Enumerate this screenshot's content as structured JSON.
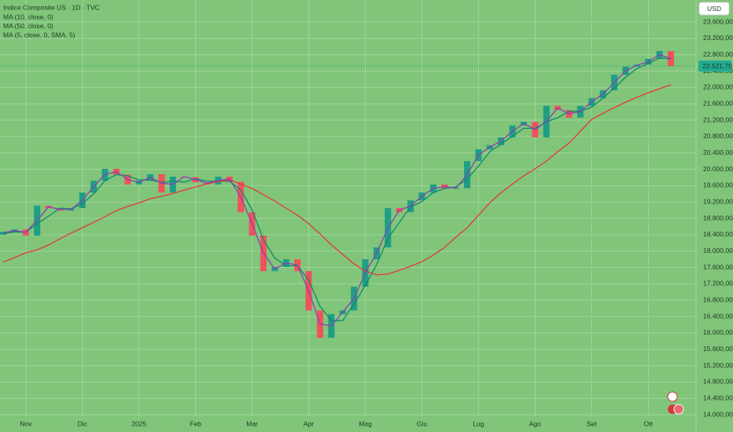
{
  "chart_data": {
    "type": "candlestick",
    "title": "Indice Composite US · 1D · TVC",
    "currency": "USD",
    "last_price": {
      "value": 22521.7,
      "label": "22.521,70"
    },
    "categories": [
      null,
      null,
      "Nov",
      null,
      null,
      null,
      null,
      "Dic",
      null,
      null,
      null,
      null,
      "2025",
      null,
      null,
      null,
      null,
      "Feb",
      null,
      null,
      null,
      null,
      "Mar",
      null,
      null,
      null,
      null,
      "Apr",
      null,
      null,
      null,
      null,
      "Mag",
      null,
      null,
      null,
      null,
      "Giu",
      null,
      null,
      null,
      null,
      "Lug",
      null,
      null,
      null,
      null,
      "Ago",
      null,
      null,
      null,
      null,
      "Set",
      null,
      null,
      null,
      null,
      "Ott",
      null,
      null
    ],
    "open": [
      18400,
      18470,
      18530,
      18380,
      19110,
      19050,
      18990,
      19050,
      19430,
      19720,
      20010,
      19870,
      19630,
      19720,
      19880,
      19430,
      19820,
      19810,
      19680,
      19630,
      19820,
      19690,
      18950,
      18380,
      17510,
      17610,
      17800,
      17510,
      16550,
      15880,
      16460,
      16550,
      17130,
      17800,
      18090,
      19050,
      18950,
      19240,
      19430,
      19630,
      19530,
      19540,
      20200,
      20490,
      20590,
      20780,
      21070,
      21160,
      20780,
      21550,
      21450,
      21260,
      21550,
      21740,
      21930,
      22310,
      22510,
      22560,
      22700,
      22890
    ],
    "close": [
      18470,
      18530,
      18380,
      19110,
      19050,
      18990,
      19050,
      19430,
      19720,
      20010,
      19870,
      19630,
      19720,
      19880,
      19430,
      19820,
      19810,
      19680,
      19630,
      19820,
      19690,
      18950,
      18380,
      17510,
      17610,
      17800,
      17510,
      16550,
      15880,
      16460,
      16550,
      17130,
      17800,
      18090,
      19050,
      18950,
      19240,
      19430,
      19630,
      19530,
      19540,
      20200,
      20490,
      20590,
      20780,
      21070,
      21160,
      20780,
      21550,
      21450,
      21260,
      21550,
      21740,
      21930,
      22310,
      22510,
      22560,
      22700,
      22890,
      22521.7
    ],
    "up_color": "#1f9e86",
    "down_color": "#f0525c",
    "series": [
      {
        "name": "MA (10, close, 0)",
        "color": "#0f8a6e",
        "values": [
          18420,
          18470,
          18460,
          18670,
          18850,
          19050,
          19030,
          19160,
          19400,
          19720,
          19870,
          19840,
          19740,
          19740,
          19680,
          19710,
          19690,
          19770,
          19710,
          19710,
          19710,
          19490,
          19010,
          18280,
          17830,
          17640,
          17640,
          17290,
          16650,
          16300,
          16300,
          16710,
          17160,
          17670,
          18310,
          18700,
          19080,
          19210,
          19430,
          19530,
          19570,
          19760,
          20080,
          20430,
          20620,
          20810,
          21000,
          21000,
          21160,
          21260,
          21420,
          21420,
          21520,
          21740,
          21990,
          22250,
          22460,
          22590,
          22720,
          22700
        ]
      },
      {
        "name": "MA (50, close, 0)",
        "color": "#e5383b",
        "values": [
          17730,
          17840,
          17960,
          18030,
          18150,
          18300,
          18440,
          18570,
          18700,
          18840,
          18990,
          19090,
          19180,
          19280,
          19340,
          19410,
          19490,
          19570,
          19640,
          19700,
          19740,
          19640,
          19530,
          19380,
          19220,
          19050,
          18880,
          18670,
          18420,
          18150,
          17920,
          17690,
          17510,
          17420,
          17440,
          17530,
          17630,
          17740,
          17900,
          18090,
          18340,
          18570,
          18880,
          19180,
          19430,
          19640,
          19840,
          20010,
          20200,
          20430,
          20640,
          20930,
          21220,
          21370,
          21510,
          21640,
          21760,
          21870,
          21970,
          22060
        ]
      },
      {
        "name": "MA (5, close, 0, SMA, 5)",
        "color": "#8e3fb5",
        "values": [
          18450,
          18500,
          18460,
          18750,
          19080,
          19020,
          19020,
          19240,
          19580,
          19870,
          19940,
          19750,
          19680,
          19800,
          19660,
          19630,
          19820,
          19750,
          19660,
          19730,
          19760,
          19320,
          18670,
          17950,
          17560,
          17710,
          17660,
          17030,
          16220,
          16170,
          16510,
          16840,
          17470,
          17950,
          18570,
          19000,
          19100,
          19340,
          19530,
          19580,
          19540,
          19870,
          20350,
          20540,
          20690,
          20930,
          21120,
          20970,
          21170,
          21500,
          21360,
          21410,
          21650,
          21840,
          22120,
          22410,
          22540,
          22630,
          22800,
          22710
        ]
      }
    ],
    "ylim": [
      13962,
      24138
    ],
    "yticks": [
      {
        "value": 14000,
        "label": "14.000,00"
      },
      {
        "value": 14400,
        "label": "14.400,00"
      },
      {
        "value": 14800,
        "label": "14.800,00"
      },
      {
        "value": 15200,
        "label": "15.200,00"
      },
      {
        "value": 15600,
        "label": "15.600,00"
      },
      {
        "value": 16000,
        "label": "16.000,00"
      },
      {
        "value": 16400,
        "label": "16.400,00"
      },
      {
        "value": 16800,
        "label": "16.800,00"
      },
      {
        "value": 17200,
        "label": "17.200,00"
      },
      {
        "value": 17600,
        "label": "17.600,00"
      },
      {
        "value": 18000,
        "label": "18.000,00"
      },
      {
        "value": 18400,
        "label": "18.400,00"
      },
      {
        "value": 18800,
        "label": "18.800,00"
      },
      {
        "value": 19200,
        "label": "19.200,00"
      },
      {
        "value": 19600,
        "label": "19.600,00"
      },
      {
        "value": 20000,
        "label": "20.000,00"
      },
      {
        "value": 20400,
        "label": "20.400,00"
      },
      {
        "value": 20800,
        "label": "20.800,00"
      },
      {
        "value": 21200,
        "label": "21.200,00"
      },
      {
        "value": 21600,
        "label": "21.600,00"
      },
      {
        "value": 22000,
        "label": "22.000,00"
      },
      {
        "value": 22400,
        "label": "22.400,00"
      },
      {
        "value": 22800,
        "label": "22.800,00"
      },
      {
        "value": 23200,
        "label": "23.200,00"
      },
      {
        "value": 23600,
        "label": "23.600,00"
      }
    ],
    "grid": true,
    "background": "#80c57a"
  }
}
